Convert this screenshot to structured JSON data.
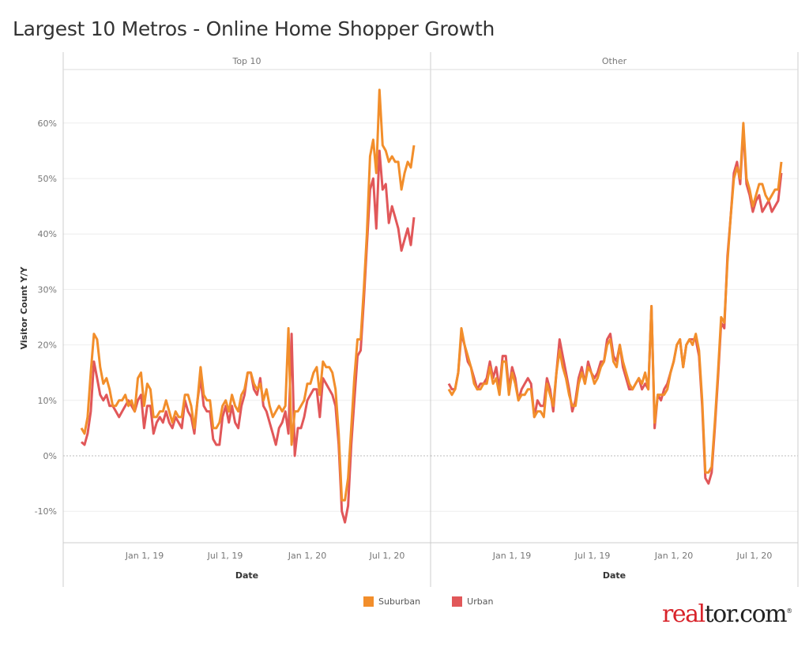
{
  "title": "Largest 10 Metros - Online Home Shopper Growth",
  "logo_text": "realtor.com",
  "colors": {
    "Suburban": "#f28e2b",
    "Urban": "#e15759"
  },
  "chart_data": {
    "type": "line",
    "title": "Largest 10 Metros - Online Home Shopper Growth",
    "xlabel": "Date",
    "ylabel": "Visitor Count Y/Y",
    "x_ticks": [
      "Jan 1, 19",
      "Jul 1, 19",
      "Jan 1, 20",
      "Jul 1, 20"
    ],
    "y_ticks": [
      "-10%",
      "0%",
      "10%",
      "20%",
      "30%",
      "40%",
      "50%",
      "60%"
    ],
    "ylim": [
      -15,
      70
    ],
    "grid": true,
    "legend": "bottom",
    "legend_entries": [
      "Suburban",
      "Urban"
    ],
    "facets": [
      {
        "label": "Top 10",
        "series": [
          {
            "name": "Suburban",
            "values": [
              5,
              4,
              7,
              15,
              22,
              21,
              16,
              13,
              14,
              12,
              9,
              9,
              10,
              10,
              11,
              9,
              10,
              8,
              14,
              15,
              9,
              13,
              12,
              7,
              7,
              8,
              8,
              10,
              8,
              6,
              8,
              7,
              7,
              11,
              11,
              9,
              5,
              10,
              16,
              11,
              10,
              10,
              5,
              5,
              6,
              9,
              10,
              8,
              11,
              9,
              8,
              11,
              12,
              15,
              15,
              13,
              12,
              13,
              10,
              12,
              9,
              7,
              8,
              9,
              8,
              9,
              23,
              2,
              8,
              8,
              9,
              10,
              13,
              13,
              15,
              16,
              11,
              17,
              16,
              16,
              15,
              12,
              4,
              -8,
              -8,
              -4,
              5,
              14,
              21,
              21,
              30,
              40,
              54,
              57,
              51,
              66,
              56,
              55,
              53,
              54,
              53,
              53,
              48,
              51,
              53,
              52,
              56
            ]
          },
          {
            "name": "Urban",
            "values": [
              2.5,
              2,
              4,
              8,
              17,
              14,
              11,
              10,
              11,
              9,
              9,
              8,
              7,
              8,
              9,
              10,
              9,
              8,
              10,
              11,
              5,
              9,
              9,
              4,
              6,
              7,
              6,
              8,
              6,
              5,
              7,
              6,
              5,
              10,
              8,
              7,
              4,
              10,
              14,
              9,
              8,
              8,
              3,
              2,
              2,
              7,
              9,
              6,
              9,
              6,
              5,
              9,
              11,
              15,
              15,
              12,
              11,
              14,
              9,
              8,
              6,
              4,
              2,
              5,
              6,
              8,
              4,
              22,
              0,
              5,
              5,
              7,
              10,
              11,
              12,
              12,
              7,
              14,
              13,
              12,
              11,
              9,
              2,
              -10,
              -12,
              -9,
              2,
              10,
              18,
              19,
              28,
              38,
              48,
              50,
              41,
              55,
              48,
              49,
              42,
              45,
              43,
              41,
              37,
              39,
              41,
              38,
              43
            ]
          }
        ]
      },
      {
        "label": "Other",
        "series": [
          {
            "name": "Suburban",
            "values": [
              12,
              11,
              12,
              15,
              23,
              20,
              18,
              16,
              13,
              12,
              12,
              13,
              13,
              16,
              13,
              14,
              11,
              17,
              17,
              11,
              15,
              13,
              10,
              11,
              11,
              12,
              12,
              7,
              8,
              8,
              7,
              13,
              11,
              9,
              15,
              19,
              16,
              14,
              11,
              9,
              9,
              13,
              15,
              13,
              16,
              15,
              13,
              14,
              16,
              17,
              20,
              21,
              17,
              16,
              20,
              17,
              15,
              13,
              12,
              13,
              14,
              13,
              15,
              12,
              27,
              6,
              11,
              11,
              11,
              12,
              15,
              17,
              20,
              21,
              16,
              20,
              21,
              20,
              22,
              19,
              10,
              -3,
              -3,
              -2,
              6,
              15,
              25,
              24,
              35,
              43,
              50,
              52,
              50,
              60,
              50,
              48,
              45,
              47,
              49,
              49,
              47,
              46,
              47,
              48,
              48,
              53
            ]
          },
          {
            "name": "Urban",
            "values": [
              13,
              12,
              12,
              15,
              22,
              20,
              17,
              16,
              14,
              12,
              13,
              13,
              14,
              17,
              14,
              16,
              12,
              18,
              18,
              12,
              16,
              14,
              10,
              12,
              13,
              14,
              13,
              7,
              10,
              9,
              9,
              14,
              12,
              8,
              15,
              21,
              18,
              15,
              12,
              8,
              10,
              14,
              16,
              13,
              17,
              15,
              14,
              15,
              17,
              17,
              21,
              22,
              18,
              17,
              20,
              16,
              14,
              12,
              12,
              13,
              14,
              12,
              13,
              12,
              27,
              5,
              11,
              10,
              12,
              13,
              15,
              17,
              20,
              21,
              16,
              20,
              21,
              21,
              21,
              18,
              9,
              -4,
              -5,
              -3,
              5,
              14,
              24,
              23,
              36,
              43,
              51,
              53,
              49,
              59,
              49,
              47,
              44,
              46,
              47,
              44,
              45,
              46,
              44,
              45,
              46,
              51
            ]
          }
        ]
      }
    ]
  }
}
